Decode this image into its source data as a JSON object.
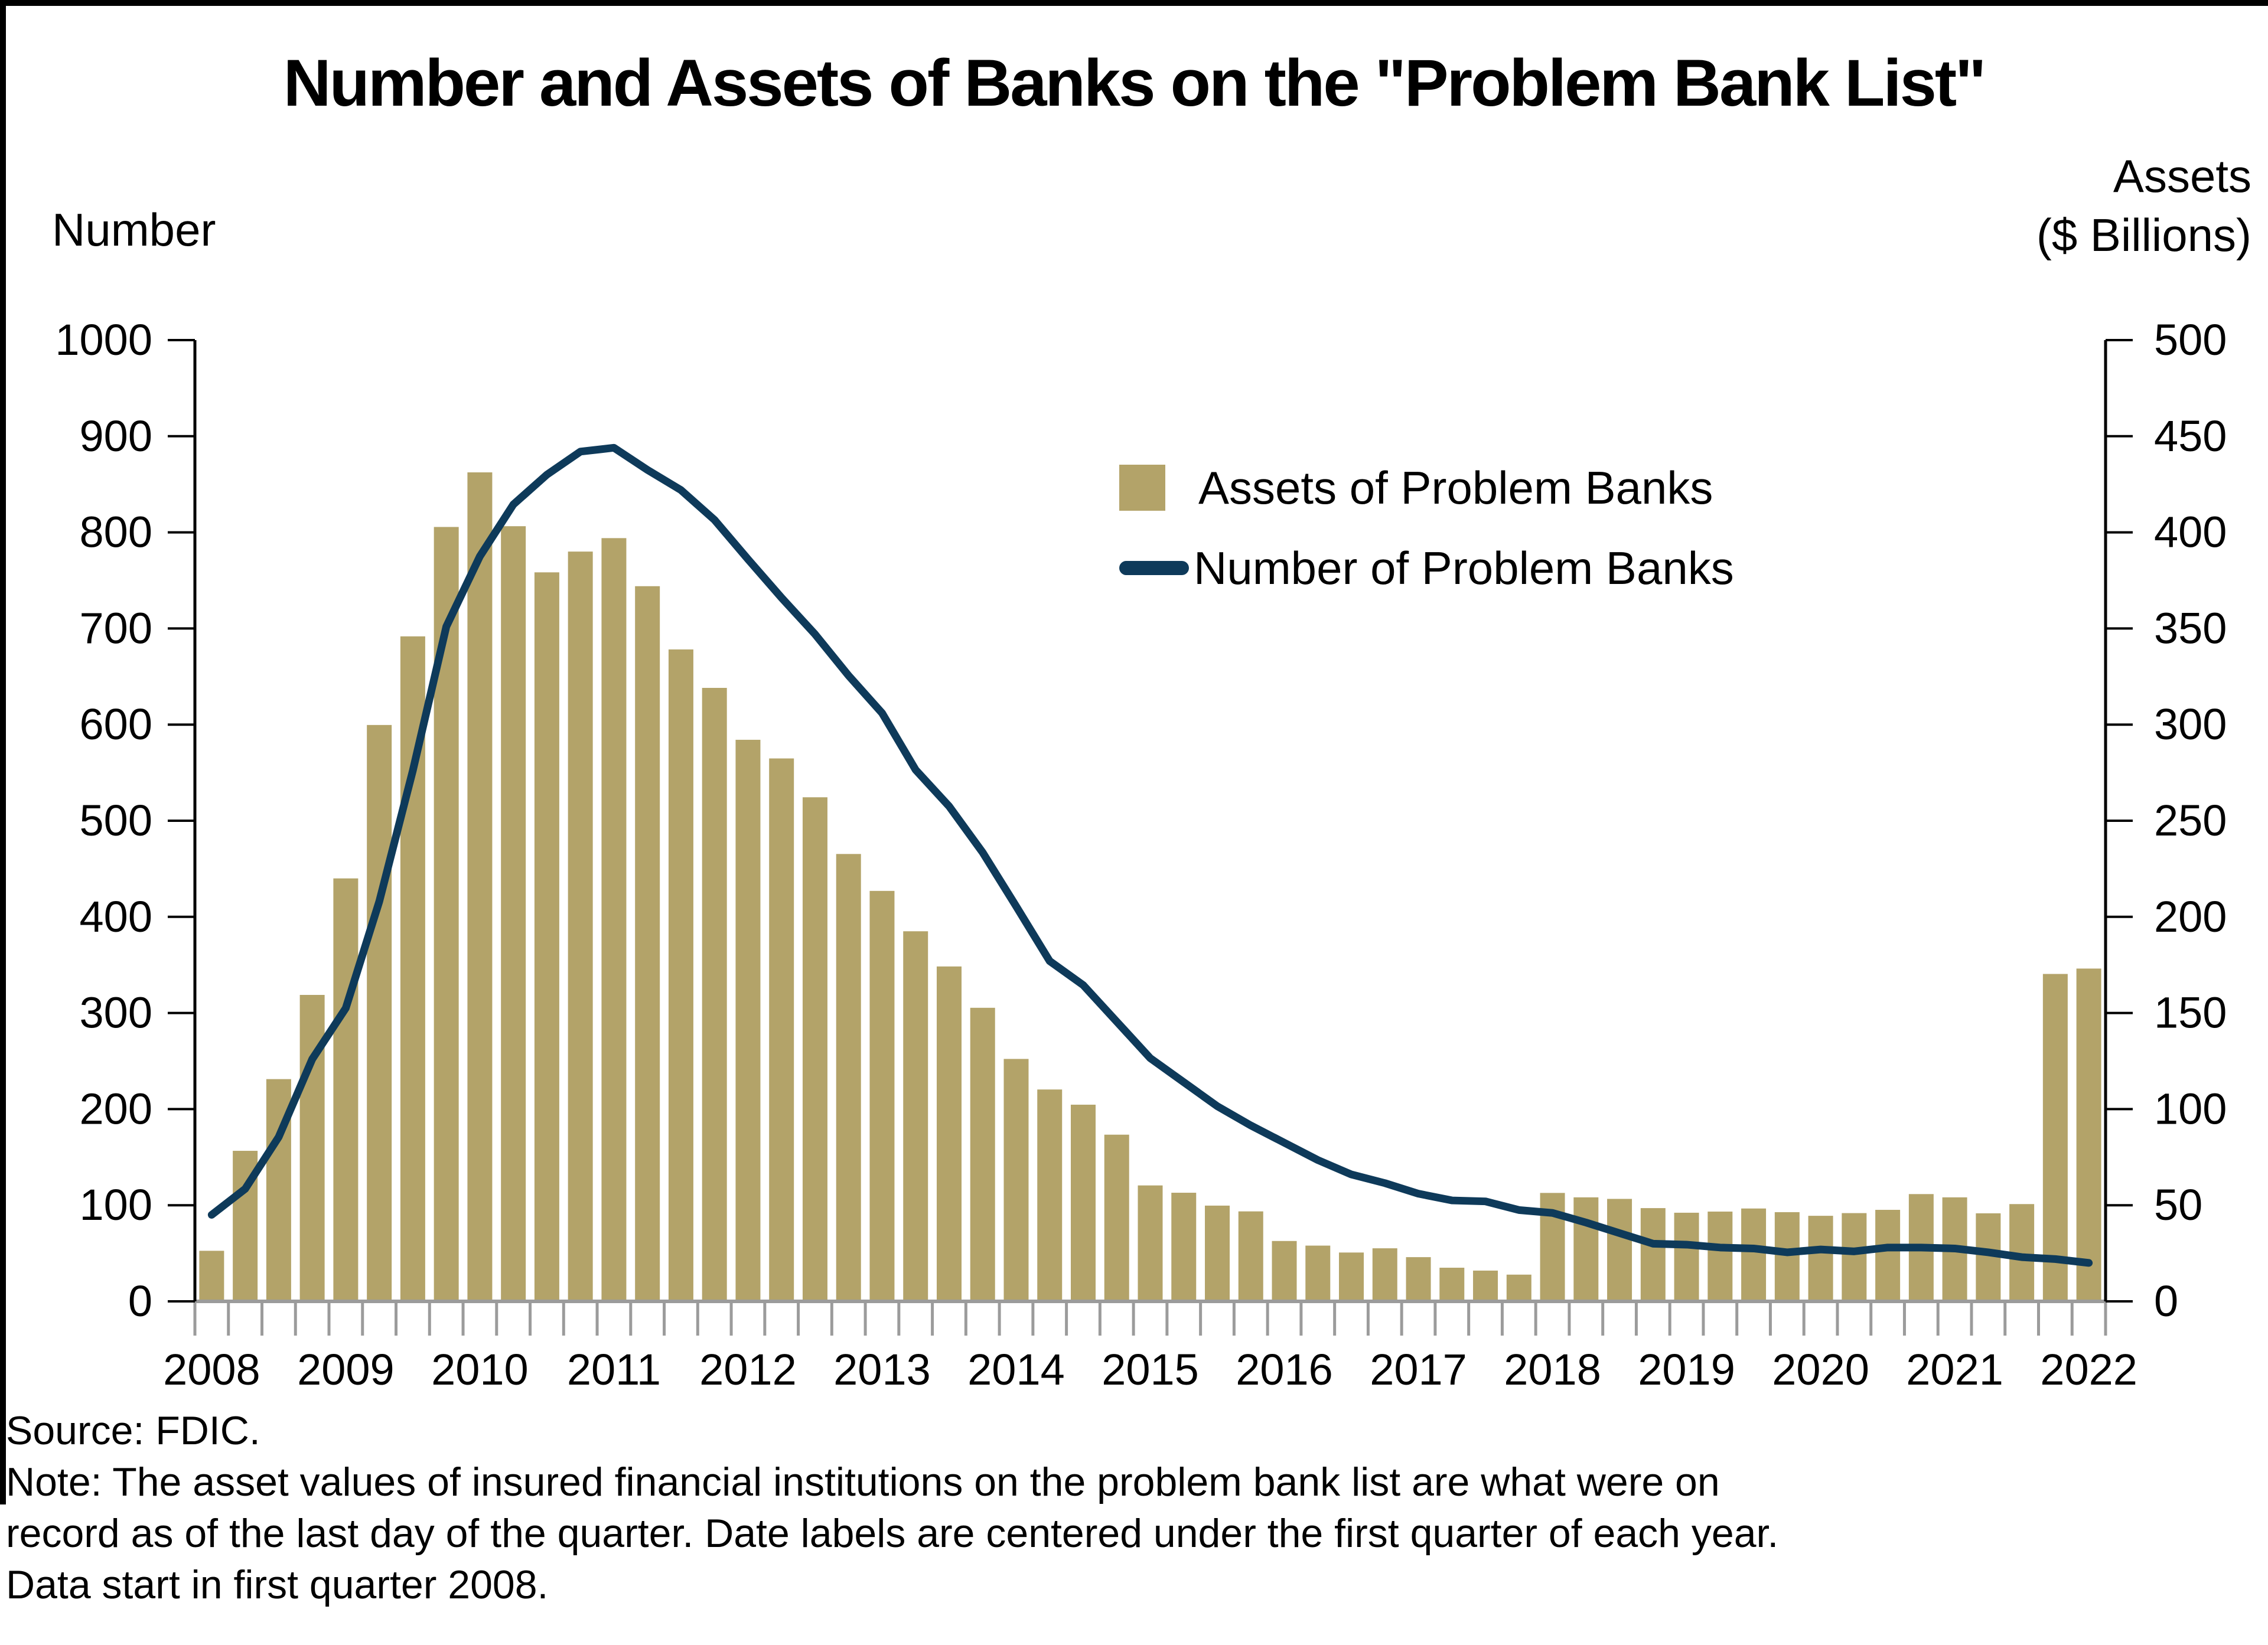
{
  "title": "Number and Assets of Banks on the \"Problem Bank List\"",
  "notes": [
    "Source: FDIC.",
    "Note: The asset values of insured financial institutions on the problem bank list are what were on",
    "record as of the last day of the quarter. Date labels are centered under the first quarter of each year.",
    "Data start in first quarter 2008."
  ],
  "chart_data": {
    "type": "combo",
    "title": "Number and Assets of Banks on the \"Problem Bank List\"",
    "left_axis": {
      "title": "Number",
      "min": 0,
      "max": 1000,
      "step": 100,
      "ticks": [
        1000,
        900,
        800,
        700,
        600,
        500,
        400,
        300,
        200,
        100,
        0
      ]
    },
    "right_axis": {
      "title_line1": "Assets",
      "title_line2": "($ Billions)",
      "min": 0,
      "max": 500,
      "step": 50,
      "ticks": [
        500,
        450,
        400,
        350,
        300,
        250,
        200,
        150,
        100,
        50,
        0
      ]
    },
    "x_year_labels": [
      "2008",
      "2009",
      "2010",
      "2011",
      "2012",
      "2013",
      "2014",
      "2015",
      "2016",
      "2017",
      "2018",
      "2019",
      "2020",
      "2021",
      "2022"
    ],
    "quarters": [
      "2008 Q1",
      "2008 Q2",
      "2008 Q3",
      "2008 Q4",
      "2009 Q1",
      "2009 Q2",
      "2009 Q3",
      "2009 Q4",
      "2010 Q1",
      "2010 Q2",
      "2010 Q3",
      "2010 Q4",
      "2011 Q1",
      "2011 Q2",
      "2011 Q3",
      "2011 Q4",
      "2012 Q1",
      "2012 Q2",
      "2012 Q3",
      "2012 Q4",
      "2013 Q1",
      "2013 Q2",
      "2013 Q3",
      "2013 Q4",
      "2014 Q1",
      "2014 Q2",
      "2014 Q3",
      "2014 Q4",
      "2015 Q1",
      "2015 Q2",
      "2015 Q3",
      "2015 Q4",
      "2016 Q1",
      "2016 Q2",
      "2016 Q3",
      "2016 Q4",
      "2017 Q1",
      "2017 Q2",
      "2017 Q3",
      "2017 Q4",
      "2018 Q1",
      "2018 Q2",
      "2018 Q3",
      "2018 Q4",
      "2019 Q1",
      "2019 Q2",
      "2019 Q3",
      "2019 Q4",
      "2020 Q1",
      "2020 Q2",
      "2020 Q3",
      "2020 Q4",
      "2021 Q1",
      "2021 Q2",
      "2021 Q3",
      "2021 Q4",
      "2022 Q1"
    ],
    "series": [
      {
        "name": "Assets of Problem Banks",
        "type": "bar",
        "axis": "right",
        "unit": "$ Billions",
        "values": [
          26.3,
          78.3,
          115.6,
          159.4,
          220.0,
          299.8,
          345.9,
          402.8,
          431.2,
          403.2,
          379.2,
          390.0,
          397.0,
          372.0,
          339.1,
          319.1,
          292.1,
          282.4,
          262.2,
          232.7,
          213.5,
          192.5,
          174.2,
          152.7,
          126.1,
          110.2,
          102.3,
          86.7,
          60.3,
          56.5,
          49.8,
          46.8,
          31.4,
          29.0,
          25.4,
          27.6,
          23.0,
          17.5,
          16.0,
          13.9,
          56.4,
          54.1,
          53.3,
          48.5,
          46.1,
          46.7,
          48.3,
          46.4,
          44.5,
          45.9,
          47.6,
          55.8,
          54.1,
          45.8,
          50.6,
          170.3,
          173.1
        ]
      },
      {
        "name": "Number of Problem Banks",
        "type": "line",
        "axis": "left",
        "unit": "banks",
        "values": [
          90,
          117,
          171,
          252,
          305,
          416,
          552,
          702,
          775,
          829,
          860,
          884,
          888,
          865,
          844,
          813,
          772,
          732,
          694,
          651,
          612,
          553,
          515,
          467,
          411,
          354,
          329,
          291,
          253,
          228,
          203,
          183,
          165,
          147,
          132,
          123,
          112,
          105,
          104,
          95,
          92,
          82,
          71,
          60,
          59,
          56,
          55,
          51,
          54,
          52,
          56,
          56,
          55,
          51,
          46,
          44,
          40
        ]
      }
    ],
    "legend": [
      {
        "label": "Assets of Problem Banks",
        "swatch": "square",
        "color": "#B3A369"
      },
      {
        "label": "Number of Problem Banks",
        "swatch": "line",
        "color": "#0E3A5A"
      }
    ],
    "colors": {
      "bars": "#B3A369",
      "line": "#0E3A5A",
      "x_axis": "#9B9B9B",
      "y_axes": "#000000"
    },
    "layout": {
      "grid": false,
      "legend_position": "inside-top-center"
    }
  }
}
